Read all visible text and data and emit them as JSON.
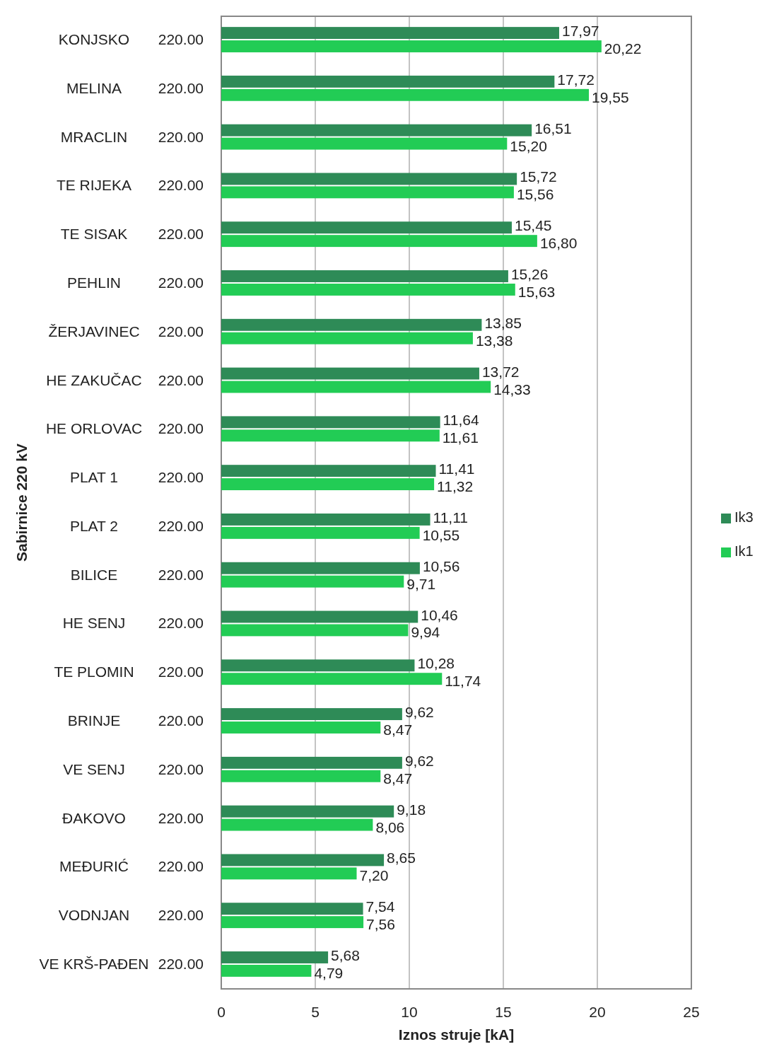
{
  "chart_data": {
    "type": "bar",
    "orientation": "horizontal",
    "xlabel": "Iznos struje [kA]",
    "ylabel": "Sabirnice 220 kV",
    "categories": [
      "KONJSKO 220.00",
      "MELINA 220.00",
      "MRACLIN 220.00",
      "TE RIJEKA 220.00",
      "TE SISAK 220.00",
      "PEHLIN 220.00",
      "ŽERJAVINEC 220.00",
      "HE ZAKUČAC 220.00",
      "HE ORLOVAC 220.00",
      "PLAT 1 220.00",
      "PLAT 2 220.00",
      "BILICE 220.00",
      "HE SENJ 220.00",
      "TE PLOMIN 220.00",
      "BRINJE 220.00",
      "VE SENJ 220.00",
      "ĐAKOVO 220.00",
      "MEĐURIĆ 220.00",
      "VODNJAN 220.00",
      "VE KRŠ-PAĐEN 220.00"
    ],
    "series": [
      {
        "name": "Ik3",
        "color": "#2e8b57",
        "values": [
          17.97,
          17.72,
          16.51,
          15.72,
          15.45,
          15.26,
          13.85,
          13.72,
          11.64,
          11.41,
          11.11,
          10.56,
          10.46,
          10.28,
          9.62,
          9.62,
          9.18,
          8.65,
          7.54,
          5.68
        ],
        "value_labels": [
          "17,97",
          "17,72",
          "16,51",
          "15,72",
          "15,45",
          "15,26",
          "13,85",
          "13,72",
          "11,64",
          "11,41",
          "11,11",
          "10,56",
          "10,46",
          "10,28",
          "9,62",
          "9,62",
          "9,18",
          "8,65",
          "7,54",
          "5,68"
        ]
      },
      {
        "name": "Ik1",
        "color": "#22cc55",
        "values": [
          20.22,
          19.55,
          15.2,
          15.56,
          16.8,
          15.63,
          13.38,
          14.33,
          11.61,
          11.32,
          10.55,
          9.71,
          9.94,
          11.74,
          8.47,
          8.47,
          8.06,
          7.2,
          7.56,
          4.79
        ],
        "value_labels": [
          "20,22",
          "19,55",
          "15,20",
          "15,56",
          "16,80",
          "15,63",
          "13,38",
          "14,33",
          "11,61",
          "11,32",
          "10,55",
          "9,71",
          "9,94",
          "11,74",
          "8,47",
          "8,47",
          "8,06",
          "7,20",
          "7,56",
          "4,79"
        ]
      }
    ],
    "xlim": [
      0,
      25
    ],
    "xticks": [
      0,
      5,
      10,
      15,
      20,
      25
    ],
    "grid": "x",
    "legend": "right"
  }
}
